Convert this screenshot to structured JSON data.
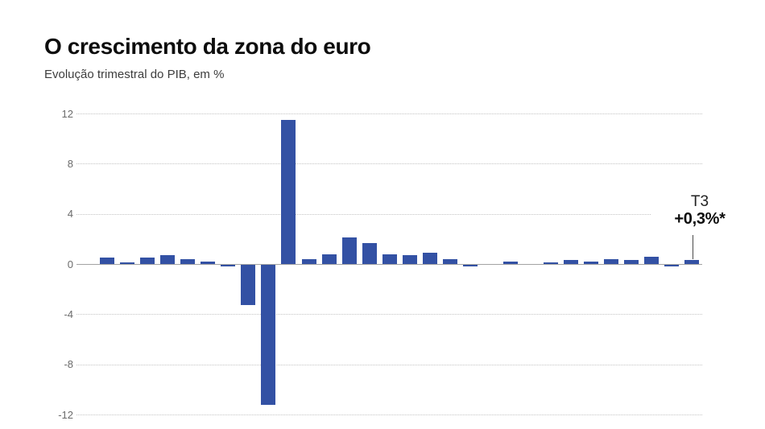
{
  "header": {
    "title": "O crescimento da zona do euro",
    "subtitle": "Evolução trimestral do PIB, em %"
  },
  "chart_data": {
    "type": "bar",
    "title": "O crescimento da zona do euro",
    "subtitle": "Evolução trimestral do PIB, em %",
    "unit": "%",
    "xlabel": "",
    "ylabel": "",
    "ylim": [
      -12,
      12
    ],
    "yticks": [
      12,
      8,
      4,
      0,
      -4,
      -8,
      -12
    ],
    "grid": "horizontal-dotted",
    "legend": "none",
    "x_axis_labels_visible": false,
    "bar_color": "#3351a4",
    "values": [
      0.5,
      0.1,
      0.5,
      0.7,
      0.4,
      0.2,
      -0.2,
      -3.3,
      -11.2,
      11.5,
      0.4,
      0.8,
      2.1,
      1.7,
      0.8,
      0.7,
      0.9,
      0.4,
      -0.2,
      0.0,
      0.2,
      0.0,
      0.1,
      0.3,
      0.2,
      0.4,
      0.3,
      0.6,
      -0.2,
      0.3
    ],
    "annotation": {
      "label": "T3",
      "value": "+0,3%*",
      "target_bar_index": 29
    }
  },
  "colors": {
    "bar": "#3351a4",
    "gridline": "#c4c4c4",
    "zero_line": "#a3a3a3",
    "axis_label": "#6b6b6b",
    "title": "#0d0d0d",
    "subtitle": "#3d3d3d",
    "background": "#ffffff"
  }
}
